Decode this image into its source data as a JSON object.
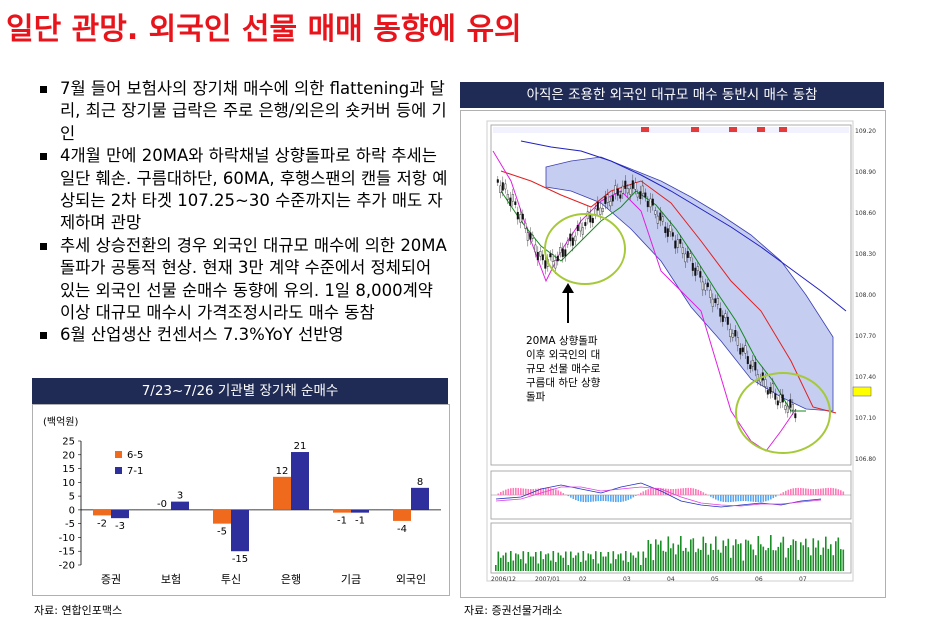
{
  "headline": "일단 관망. 외국인 선물 매매 동향에 유의",
  "bullets": [
    "7월 들어 보험사의 장기채 매수에 의한 flattening과 달리, 최근 장기물 급락은 주로 은행/외은의 숏커버 등에 기인",
    "4개월 만에 20MA와 하락채널 상향돌파로 하락 추세는 일단 훼손. 구름대하단, 60MA, 후행스팬의 캔들 저항 예상되는 2차 타겟 107.25~30 수준까지는 추가 매도 자제하며 관망",
    "추세 상승전환의 경우 외국인 대규모 매수에 의한 20MA 돌파가 공통적 현상. 현재 3만 계약 수준에서 정체되어 있는 외국인 선물 순매수 동향에 유의. 1일 8,000계약 이상 대규모 매수시 가격조정시라도 매수 동참",
    "6월 산업생산 컨센서스 7.3%YoY 선반영"
  ],
  "left_panel": {
    "title": "7/23~7/26 기관별 장기채 순매수",
    "source": "자료: 연합인포맥스"
  },
  "right_panel": {
    "title": "아직은 조용한 외국인 대규모 매수 동반시 매수 동참",
    "source": "자료: 증권선물거래소",
    "annotation": [
      "20MA 상향돌파",
      "이후 외국인의 대",
      "규모 선물 매수로",
      "구름대 하단 상향",
      "돌파"
    ],
    "price_ticks": [
      "109.20",
      "108.90",
      "108.60",
      "108.30",
      "108.00",
      "107.70",
      "107.40",
      "107.10",
      "106.80"
    ],
    "date_ticks": [
      "2006/12",
      "2007/01",
      "02",
      "03",
      "04",
      "05",
      "06",
      "07"
    ]
  },
  "colors": {
    "headline": "#e8141b",
    "panel_header": "#1f2b54",
    "series_orange": "#f06a1e",
    "series_navy": "#2e2f9c",
    "circle": "#a6c93a"
  },
  "chart_data": {
    "type": "bar",
    "ylabel": "(백억원)",
    "categories": [
      "증권",
      "보험",
      "투신",
      "은행",
      "기금",
      "외국인"
    ],
    "series": [
      {
        "name": "6-5",
        "values": [
          -2,
          0,
          -5,
          12,
          -1,
          -4
        ]
      },
      {
        "name": "7-1",
        "values": [
          -3,
          3,
          -15,
          21,
          -1,
          8
        ]
      }
    ],
    "value_labels": [
      [
        "-2",
        "-0",
        "-5",
        "12",
        "-1",
        "-4"
      ],
      [
        "-3",
        "3",
        "-15",
        "21",
        "-1",
        "8"
      ]
    ],
    "ylim": [
      -20,
      25
    ],
    "yticks": [
      25,
      20,
      15,
      10,
      5,
      0,
      -5,
      -10,
      -15,
      -20
    ],
    "ytick_labels": [
      "25",
      "20",
      "15",
      "10",
      "5",
      "0",
      "-5",
      "-10",
      "-15",
      "-20"
    ],
    "legend_position": "upper-left",
    "grid": false
  }
}
